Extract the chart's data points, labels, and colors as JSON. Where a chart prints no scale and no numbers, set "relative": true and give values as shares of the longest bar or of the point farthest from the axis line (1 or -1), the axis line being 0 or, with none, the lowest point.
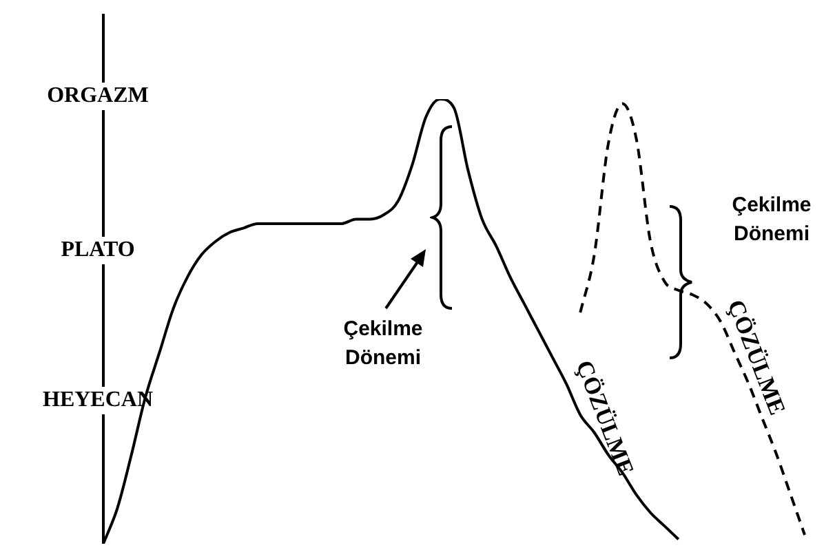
{
  "chart_data": {
    "type": "line",
    "relative": true,
    "marker": "none",
    "legend": false,
    "categories": [
      null,
      null,
      null,
      null,
      null,
      null,
      null,
      null,
      null,
      null,
      null,
      null,
      null,
      null,
      null,
      null,
      null,
      null,
      null,
      null,
      null,
      null,
      null,
      null,
      null,
      null,
      null,
      null,
      null,
      null,
      null,
      null,
      null,
      null,
      null,
      null,
      null,
      null,
      null,
      null,
      null,
      null,
      null,
      null,
      null,
      null,
      null,
      null,
      null,
      null,
      null
    ],
    "series": [
      {
        "color": "#000000",
        "line_style": "solid",
        "values": [
          0,
          0.08,
          0.2,
          0.33,
          0.43,
          0.53,
          0.6,
          0.65,
          0.68,
          0.7,
          0.71,
          0.72,
          0.72,
          0.72,
          0.72,
          0.72,
          0.72,
          0.72,
          0.73,
          0.73,
          0.74,
          0.77,
          0.85,
          0.96,
          1,
          0.98,
          0.84,
          0.73,
          0.67,
          0.6,
          0.54,
          0.48,
          0.42,
          0.36,
          0.29,
          0.25,
          0.2,
          0.16,
          0.11,
          0.07,
          0.04,
          0.01,
          null,
          null,
          null,
          null,
          null,
          null,
          null,
          null,
          null
        ]
      },
      {
        "color": "#000000",
        "line_style": "dashed",
        "values": [
          null,
          null,
          null,
          null,
          null,
          null,
          null,
          null,
          null,
          null,
          null,
          null,
          null,
          null,
          null,
          null,
          null,
          null,
          null,
          null,
          null,
          null,
          null,
          null,
          null,
          null,
          null,
          null,
          null,
          null,
          null,
          null,
          null,
          null,
          0.52,
          0.65,
          0.9,
          0.99,
          0.91,
          0.68,
          0.59,
          0.57,
          0.56,
          0.54,
          0.5,
          0.43,
          0.36,
          0.28,
          0.2,
          0.11,
          0.02
        ]
      }
    ],
    "annotations": [
      "ORGAZM",
      "PLATO",
      "HEYECAN",
      "Çekilme Dönemi",
      "ÇÖZÜLME",
      "Çekilme Dönemi",
      "ÇÖZÜLME"
    ]
  }
}
